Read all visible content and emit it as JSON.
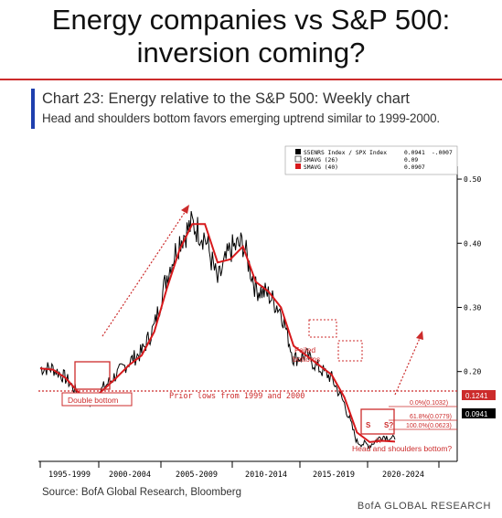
{
  "slide_title_line1": "Energy companies vs S&P 500:",
  "slide_title_line2": "inversion coming?",
  "chart_title": "Chart 23: Energy relative to the S&P 500: Weekly chart",
  "chart_subtitle": "Head and shoulders bottom favors emerging uptrend similar to 1999-2000.",
  "source": "Source: BofA Global Research, Bloomberg",
  "brand": "BofA GLOBAL RESEARCH",
  "colors": {
    "accent_red": "#cc2b2b",
    "title_bar": "#1f3fae",
    "price": "#000000",
    "ma": "#d7191c"
  },
  "chart_data": {
    "type": "line",
    "x": [
      "1995",
      "1996",
      "1997",
      "1998",
      "1999",
      "2000",
      "2001",
      "2002",
      "2003",
      "2004",
      "2005",
      "2006",
      "2007",
      "2008",
      "2009",
      "2010",
      "2011",
      "2012",
      "2013",
      "2014",
      "2015",
      "2016",
      "2017",
      "2018",
      "2019",
      "2020",
      "2021",
      "2022",
      "2023"
    ],
    "series": [
      {
        "name": "S5ENRS Index / SPX Index",
        "values": [
          0.205,
          0.205,
          0.19,
          0.165,
          0.15,
          0.175,
          0.195,
          0.215,
          0.23,
          0.27,
          0.35,
          0.405,
          0.43,
          0.41,
          0.34,
          0.39,
          0.4,
          0.33,
          0.32,
          0.295,
          0.22,
          0.225,
          0.205,
          0.19,
          0.15,
          0.09,
          0.085,
          0.1,
          0.094
        ]
      },
      {
        "name": "SMAVG (40)",
        "values": [
          0.205,
          0.203,
          0.19,
          0.168,
          0.155,
          0.172,
          0.19,
          0.21,
          0.225,
          0.262,
          0.33,
          0.39,
          0.43,
          0.43,
          0.37,
          0.375,
          0.395,
          0.34,
          0.325,
          0.3,
          0.24,
          0.225,
          0.21,
          0.195,
          0.16,
          0.105,
          0.09,
          0.092,
          0.0907
        ]
      }
    ],
    "legend": {
      "entries": [
        {
          "label": "S5ENRS Index / SPX Index",
          "value": "0.0941",
          "change": "-.0007",
          "color": "#000000"
        },
        {
          "label": "SMAVG (26)",
          "value": "0.09",
          "change": "",
          "color": "#ffffff"
        },
        {
          "label": "SMAVG (40)",
          "value": "0.0907",
          "change": "",
          "color": "#d7191c"
        }
      ],
      "placement": "top-right"
    },
    "y_ticks": [
      "0.50",
      "0.40",
      "0.30",
      "0.20"
    ],
    "x_ticks": [
      "1995-1999",
      "2000-2004",
      "2005-2009",
      "2010-2014",
      "2015-2019",
      "2020-2024"
    ],
    "ylim": [
      0.06,
      0.52
    ],
    "annotations": {
      "double_bottom": "Double bottom",
      "prior_lows": "Prior lows from 1999 and 2000",
      "failed_bottoms_1": "Failed",
      "failed_bottoms_2": "bottoms",
      "hs_bottom": "Head and shoulders bottom?",
      "s_left": "S",
      "s_right": "S?",
      "h": "H",
      "fib_0": "0.0%(0.1032)",
      "fib_618": "61.8%(0.0779)",
      "fib_100": "100.0%(0.0623)",
      "tag_prior": "0.1241",
      "tag_last": "0.0941"
    }
  }
}
